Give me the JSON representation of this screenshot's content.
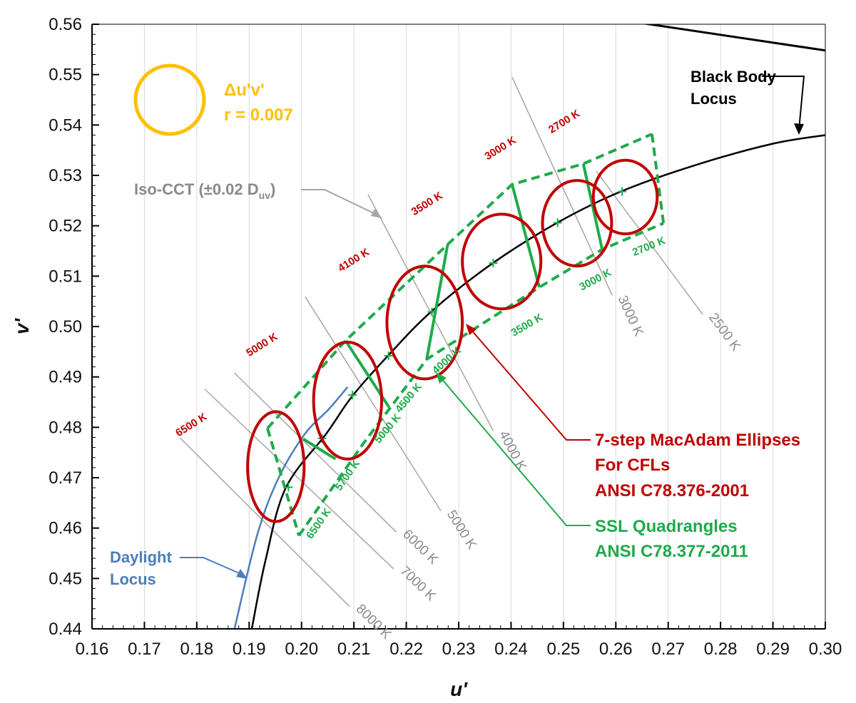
{
  "chart_data": {
    "type": "scatter",
    "xlabel": "u'",
    "ylabel": "v'",
    "xlim": [
      0.16,
      0.3
    ],
    "ylim": [
      0.44,
      0.56
    ],
    "x_ticks": [
      "0.16",
      "0.17",
      "0.18",
      "0.19",
      "0.20",
      "0.21",
      "0.22",
      "0.23",
      "0.24",
      "0.25",
      "0.26",
      "0.27",
      "0.28",
      "0.29",
      "0.30"
    ],
    "y_ticks": [
      "0.44",
      "0.45",
      "0.46",
      "0.47",
      "0.48",
      "0.49",
      "0.50",
      "0.51",
      "0.52",
      "0.53",
      "0.54",
      "0.55",
      "0.56"
    ],
    "grid": "vertical",
    "colors": {
      "blackbody": "#000000",
      "daylight": "#4a7ebb",
      "ellipse": "#c00000",
      "quad": "#1faa4a",
      "iso": "#a6a6a6",
      "circle": "#ffc000"
    },
    "black_body_locus": {
      "name": "Black Body Locus",
      "points": [
        [
          0.1905,
          0.44
        ],
        [
          0.1931,
          0.4535
        ],
        [
          0.197,
          0.468
        ],
        [
          0.2047,
          0.4787
        ],
        [
          0.2097,
          0.4862
        ],
        [
          0.2165,
          0.4942
        ],
        [
          0.2248,
          0.503
        ],
        [
          0.2364,
          0.5125
        ],
        [
          0.249,
          0.5207
        ],
        [
          0.2612,
          0.5269
        ],
        [
          0.2757,
          0.5322
        ],
        [
          0.29,
          0.5363
        ],
        [
          0.3,
          0.538
        ]
      ],
      "upper_segment": [
        [
          0.2645,
          0.5603
        ],
        [
          0.3,
          0.5548
        ]
      ]
    },
    "daylight_locus": {
      "name": "Daylight Locus",
      "points": [
        [
          0.1872,
          0.44
        ],
        [
          0.1915,
          0.4585
        ],
        [
          0.1955,
          0.4697
        ],
        [
          0.2005,
          0.4785
        ],
        [
          0.2052,
          0.4836
        ],
        [
          0.2088,
          0.488
        ]
      ]
    },
    "iso_cct_lines": [
      {
        "label": "2500 K",
        "p1": [
          0.2563,
          0.5308
        ],
        "p2": [
          0.2766,
          0.5024
        ]
      },
      {
        "label": "3000 K",
        "p1": [
          0.2402,
          0.5495
        ],
        "p2": [
          0.2593,
          0.5062
        ]
      },
      {
        "label": "4000 K",
        "p1": [
          0.2127,
          0.5262
        ],
        "p2": [
          0.2366,
          0.4793
        ]
      },
      {
        "label": "5000 K",
        "p1": [
          0.2007,
          0.5059
        ],
        "p2": [
          0.2266,
          0.4634
        ]
      },
      {
        "label": "6000 K",
        "p1": [
          0.1872,
          0.4908
        ],
        "p2": [
          0.2181,
          0.4592
        ]
      },
      {
        "label": "7000 K",
        "p1": [
          0.1815,
          0.4876
        ],
        "p2": [
          0.2176,
          0.4519
        ]
      },
      {
        "label": "8000 K",
        "p1": [
          0.1768,
          0.4779
        ],
        "p2": [
          0.2092,
          0.4444
        ]
      }
    ],
    "iso_cct_legend": "Iso-CCT (±0.02 D",
    "iso_cct_legend_sub": "uv",
    "iso_cct_legend_tail": ")",
    "macadam_ellipses": [
      {
        "label": "6500 K",
        "cx": 0.1951,
        "cy": 0.4722,
        "rx": 0.0054,
        "ry": 0.0109
      },
      {
        "label": "5000 K",
        "cx": 0.2088,
        "cy": 0.4853,
        "rx": 0.0065,
        "ry": 0.0116
      },
      {
        "label": "4100 K",
        "cx": 0.2235,
        "cy": 0.5008,
        "rx": 0.0072,
        "ry": 0.0112
      },
      {
        "label": "3500 K",
        "cx": 0.2382,
        "cy": 0.5129,
        "rx": 0.0075,
        "ry": 0.0094
      },
      {
        "label": "3000 K",
        "cx": 0.2526,
        "cy": 0.5205,
        "rx": 0.0066,
        "ry": 0.0085
      },
      {
        "label": "2700 K",
        "cx": 0.2618,
        "cy": 0.5257,
        "rx": 0.0061,
        "ry": 0.0073
      }
    ],
    "ssl_quadrangles": {
      "outer": [
        [
          0.1935,
          0.4798
        ],
        [
          0.2084,
          0.4972
        ],
        [
          0.2279,
          0.5163
        ],
        [
          0.2402,
          0.5282
        ],
        [
          0.2538,
          0.5323
        ],
        [
          0.2669,
          0.5382
        ]
      ],
      "inner": [
        [
          0.1995,
          0.4585
        ],
        [
          0.2118,
          0.4768
        ],
        [
          0.2239,
          0.4935
        ],
        [
          0.2454,
          0.5078
        ],
        [
          0.2574,
          0.5153
        ],
        [
          0.2691,
          0.5205
        ]
      ],
      "dividers": [
        [
          [
            0.2003,
            0.4777
          ],
          [
            0.2065,
            0.4737
          ]
        ],
        [
          [
            0.2084,
            0.4972
          ],
          [
            0.2167,
            0.484
          ]
        ],
        [
          [
            0.2279,
            0.5163
          ],
          [
            0.2239,
            0.4935
          ]
        ],
        [
          [
            0.2402,
            0.5282
          ],
          [
            0.2454,
            0.5078
          ]
        ],
        [
          [
            0.2538,
            0.5323
          ],
          [
            0.2574,
            0.5153
          ]
        ]
      ],
      "centers": [
        [
          0.1975,
          0.4681
        ],
        [
          0.2039,
          0.4778
        ],
        [
          0.2097,
          0.4864
        ],
        [
          0.2166,
          0.4942
        ],
        [
          0.2249,
          0.5029
        ],
        [
          0.2366,
          0.5126
        ],
        [
          0.2489,
          0.5206
        ],
        [
          0.2612,
          0.5268
        ]
      ],
      "labels": [
        "6500 K",
        "5700 K",
        "5000 K",
        "4500 K",
        "4000 K",
        "3500 K",
        "3000 K",
        "2700 K"
      ]
    },
    "circle_note": {
      "line1": "Δu'v'",
      "line2": "r = 0.007",
      "radius": 0.007
    },
    "annotations": {
      "blackbody_line1": "Black Body",
      "blackbody_line2": "Locus",
      "daylight_line1": "Daylight",
      "daylight_line2": "Locus",
      "macadam_line1": "7-step MacAdam Ellipses",
      "macadam_line2": "For CFLs",
      "macadam_line3": "ANSI C78.376-2001",
      "ssl_line1": "SSL Quadrangles",
      "ssl_line2": "ANSI C78.377-2011"
    }
  }
}
